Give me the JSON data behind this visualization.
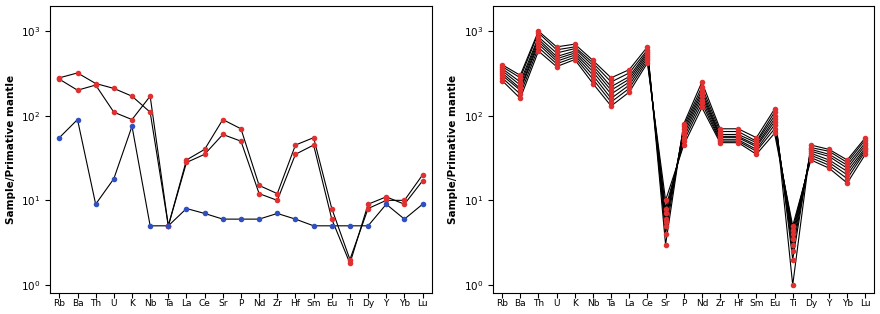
{
  "elements": [
    "Rb",
    "Ba",
    "Th",
    "U",
    "K",
    "Nb",
    "Ta",
    "La",
    "Ce",
    "Sr",
    "P",
    "Nd",
    "Zr",
    "Hf",
    "Sm",
    "Eu",
    "Ti",
    "Dy",
    "Y",
    "Yb",
    "Lu"
  ],
  "left_red_series": [
    [
      280,
      320,
      240,
      210,
      170,
      110,
      5,
      30,
      40,
      90,
      70,
      15,
      12,
      45,
      55,
      8,
      2.0,
      8,
      10,
      10,
      20
    ],
    [
      270,
      200,
      230,
      110,
      90,
      170,
      5,
      28,
      35,
      60,
      50,
      12,
      10,
      35,
      45,
      6,
      1.8,
      9,
      11,
      9,
      17
    ]
  ],
  "left_blue_series": [
    [
      55,
      90,
      9,
      18,
      75,
      5,
      5,
      8,
      7,
      6,
      6,
      6,
      7,
      6,
      5,
      5,
      5,
      5,
      9,
      6,
      9
    ]
  ],
  "right_red_series": [
    [
      400,
      300,
      1000,
      650,
      700,
      450,
      280,
      350,
      650,
      3,
      80,
      250,
      70,
      70,
      55,
      120,
      1,
      45,
      40,
      30,
      55
    ],
    [
      380,
      280,
      950,
      600,
      650,
      420,
      250,
      320,
      600,
      4,
      75,
      220,
      65,
      65,
      50,
      110,
      2,
      42,
      38,
      28,
      52
    ],
    [
      360,
      250,
      850,
      550,
      620,
      390,
      220,
      290,
      570,
      5,
      70,
      200,
      60,
      60,
      48,
      100,
      2.5,
      40,
      35,
      26,
      48
    ],
    [
      340,
      230,
      800,
      500,
      580,
      360,
      200,
      270,
      540,
      5.5,
      65,
      185,
      57,
      57,
      45,
      92,
      3,
      38,
      33,
      24,
      45
    ],
    [
      320,
      210,
      750,
      470,
      550,
      330,
      180,
      250,
      510,
      6,
      60,
      170,
      55,
      55,
      43,
      85,
      3.5,
      36,
      30,
      22,
      42
    ],
    [
      300,
      200,
      700,
      440,
      520,
      300,
      160,
      230,
      480,
      7,
      55,
      155,
      52,
      52,
      40,
      78,
      4,
      34,
      28,
      20,
      40
    ],
    [
      280,
      180,
      640,
      410,
      490,
      270,
      145,
      210,
      450,
      8,
      50,
      140,
      50,
      50,
      38,
      70,
      4.5,
      32,
      26,
      18,
      38
    ],
    [
      260,
      160,
      580,
      380,
      460,
      240,
      130,
      190,
      420,
      10,
      45,
      125,
      48,
      48,
      35,
      62,
      5,
      30,
      24,
      16,
      35
    ]
  ],
  "left_ylim": [
    0.8,
    2000
  ],
  "right_ylim": [
    0.8,
    2000
  ],
  "ylabel": "Sample/Primative mantle",
  "line_color": "black",
  "red_color": "#e03030",
  "blue_color": "#3050c0",
  "marker_size": 4,
  "linewidth": 0.8
}
